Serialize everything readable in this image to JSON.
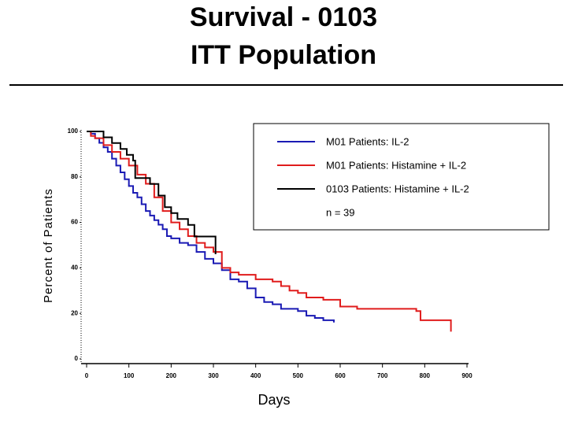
{
  "chart_data": {
    "type": "step",
    "title": [
      "Survival - 0103",
      "ITT Population"
    ],
    "xlabel": "Days",
    "ylabel": "Percent of Patients",
    "annotation": "n = 39",
    "legend": "upper right",
    "xlim": [
      0,
      900
    ],
    "ylim": [
      0,
      100
    ],
    "xticks": [
      0,
      100,
      200,
      300,
      400,
      500,
      600,
      700,
      800,
      900
    ],
    "yticks": [
      0,
      20,
      40,
      60,
      80,
      100
    ],
    "series": [
      {
        "name": "M01 Patients:  IL-2",
        "color": "#1a1ab4",
        "x": [
          0,
          10,
          20,
          30,
          40,
          50,
          60,
          70,
          80,
          90,
          100,
          110,
          120,
          130,
          140,
          150,
          160,
          170,
          180,
          190,
          200,
          220,
          240,
          260,
          280,
          300,
          320,
          340,
          360,
          380,
          400,
          420,
          440,
          460,
          480,
          500,
          520,
          540,
          560,
          580,
          585
        ],
        "values": [
          100,
          99,
          97,
          95,
          93,
          91,
          88,
          85,
          82,
          79,
          76,
          73,
          71,
          68,
          65,
          63,
          61,
          59,
          57,
          54,
          53,
          51,
          50,
          47,
          44,
          42,
          39,
          35,
          34,
          31,
          27,
          25,
          24,
          22,
          22,
          21,
          19,
          18,
          17,
          17,
          16
        ]
      },
      {
        "name": "M01 Patients:  Histamine + IL-2",
        "color": "#e01c1c",
        "x": [
          0,
          10,
          20,
          40,
          60,
          80,
          100,
          120,
          140,
          160,
          180,
          200,
          220,
          240,
          260,
          280,
          300,
          320,
          340,
          360,
          400,
          440,
          460,
          480,
          500,
          520,
          560,
          600,
          640,
          780,
          790,
          860,
          862
        ],
        "values": [
          100,
          98,
          97,
          94,
          91,
          88,
          85,
          81,
          77,
          71,
          65,
          60,
          57,
          54,
          51,
          49,
          47,
          40,
          38,
          37,
          35,
          34,
          32,
          30,
          29,
          27,
          26,
          23,
          22,
          21,
          17,
          17,
          12
        ]
      },
      {
        "name": "0103 Patients:  Histamine + IL-2",
        "color": "#000000",
        "x": [
          0,
          40,
          60,
          80,
          95,
          110,
          115,
          150,
          170,
          185,
          200,
          215,
          240,
          255,
          300,
          305
        ],
        "values": [
          100,
          97.4,
          94.9,
          92.3,
          89.7,
          87.2,
          79.5,
          76.9,
          71.8,
          66.7,
          64.1,
          61.5,
          58.9,
          53.8,
          53.8,
          46
        ]
      }
    ]
  }
}
